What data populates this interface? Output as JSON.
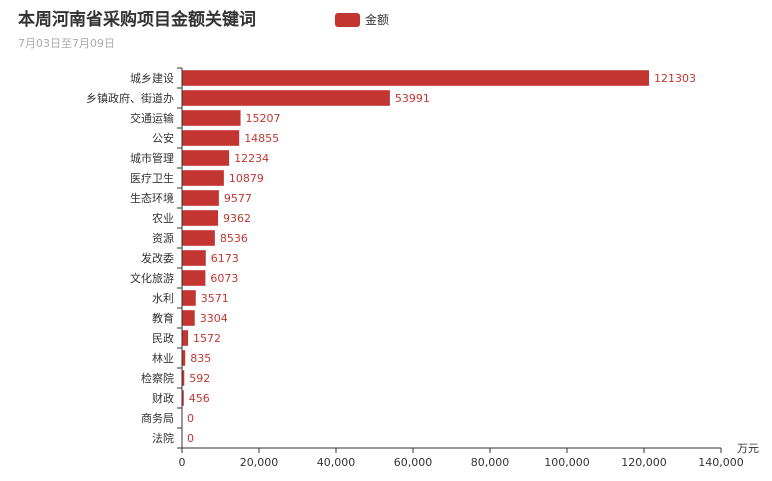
{
  "colors": {
    "bar": "#c23531",
    "axis": "#333333"
  },
  "chart_data": {
    "type": "bar",
    "orientation": "horizontal",
    "title": "本周河南省采购项目金额关键词",
    "subtitle": "7月03日至7月09日",
    "legend": {
      "entries": [
        "金额"
      ],
      "placement": "top-center"
    },
    "xlabel": "万元",
    "ylabel": "",
    "xlim": [
      0,
      140000
    ],
    "x_ticks": [
      "0",
      "20,000",
      "40,000",
      "60,000",
      "80,000",
      "100,000",
      "120,000",
      "140,000"
    ],
    "grid": false,
    "categories": [
      "城乡建设",
      "乡镇政府、街道办",
      "交通运输",
      "公安",
      "城市管理",
      "医疗卫生",
      "生态环境",
      "农业",
      "资源",
      "发改委",
      "文化旅游",
      "水利",
      "教育",
      "民政",
      "林业",
      "检察院",
      "财政",
      "商务局",
      "法院"
    ],
    "series": [
      {
        "name": "金额",
        "values": [
          121303,
          53991,
          15207,
          14855,
          12234,
          10879,
          9577,
          9362,
          8536,
          6173,
          6073,
          3571,
          3304,
          1572,
          835,
          592,
          456,
          0,
          0
        ]
      }
    ]
  }
}
